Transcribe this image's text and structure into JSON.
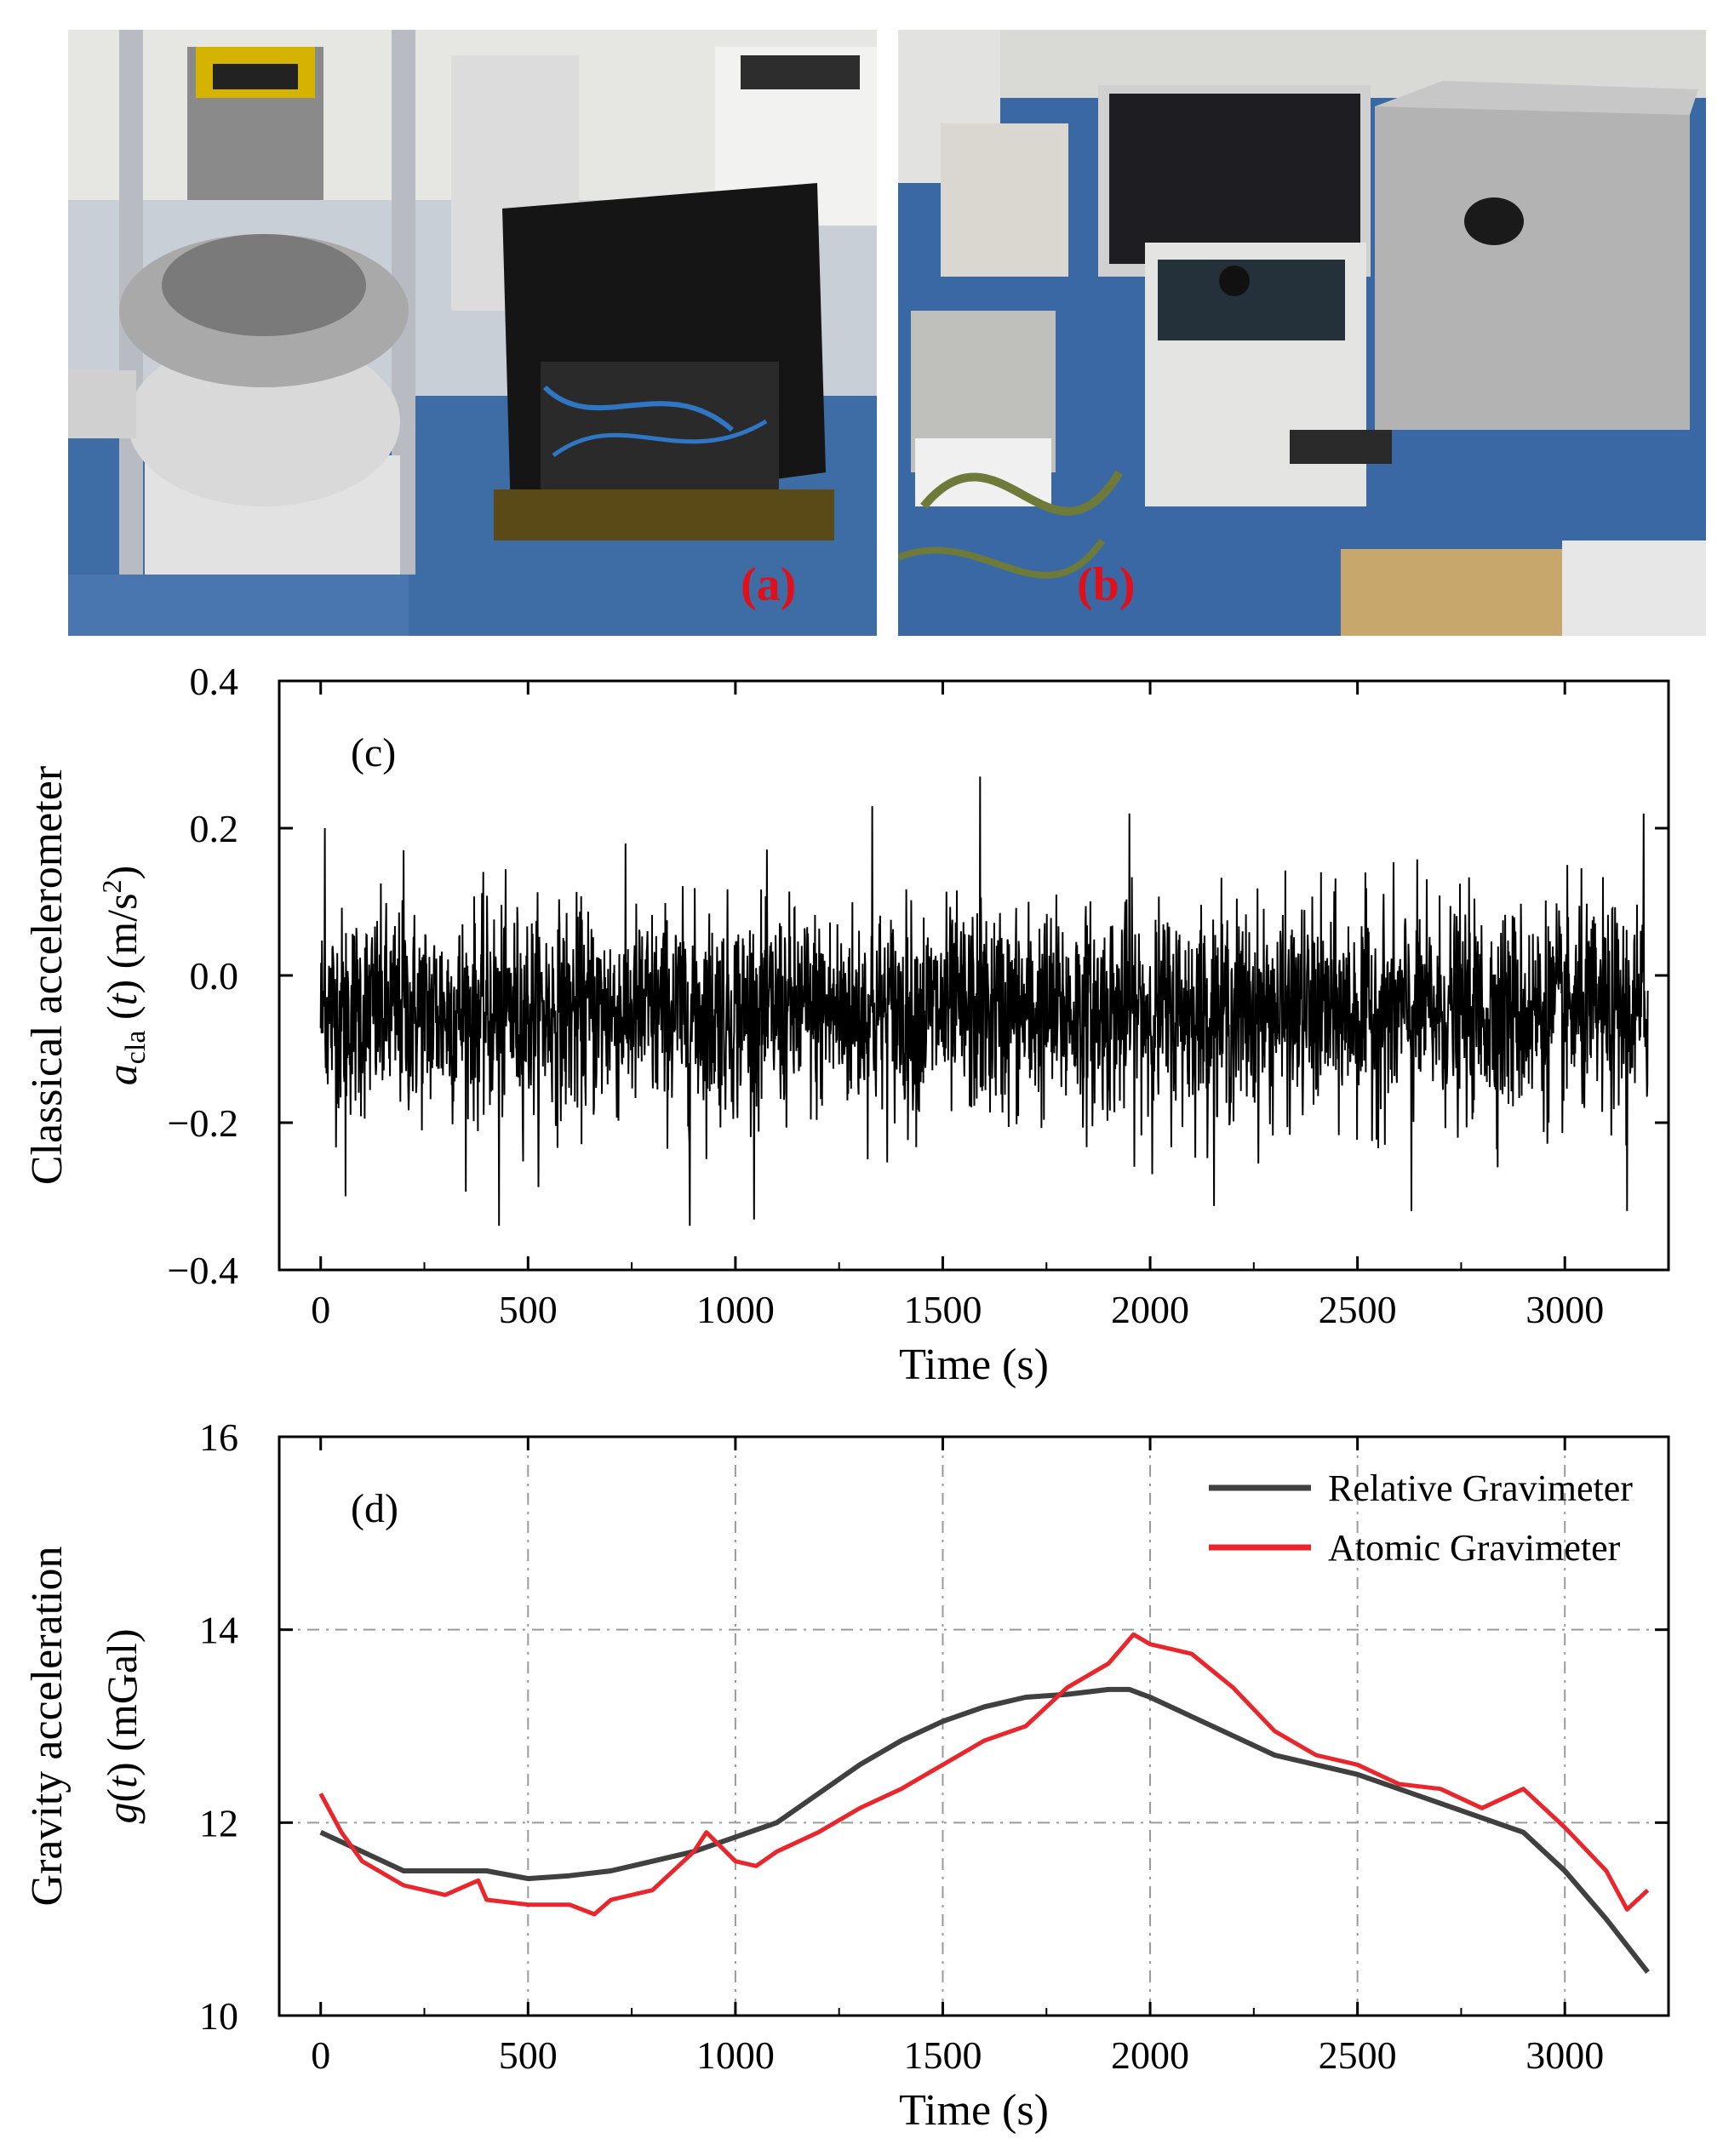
{
  "panels": {
    "a": {
      "label": "(a)"
    },
    "b": {
      "label": "(b)"
    }
  },
  "colors": {
    "black_series": "#000000",
    "relative": "#404040",
    "atomic": "#e8262b",
    "grid": "#9a9a9a",
    "label_red": "#e0101a"
  },
  "chart_data": [
    {
      "type": "line",
      "panel_label": "(c)",
      "xlabel": "Time (s)",
      "ylabel_line1": "Classical accelerometer",
      "ylabel_line2": "acla (t) (m/s2)",
      "xlim": [
        -100,
        3250
      ],
      "ylim": [
        -0.4,
        0.4
      ],
      "xticks": [
        0,
        500,
        1000,
        1500,
        2000,
        2500,
        3000
      ],
      "yticks": [
        -0.4,
        -0.2,
        0.0,
        0.2,
        0.4
      ],
      "ytick_labels": [
        "−0.4",
        "−0.2",
        "0.0",
        "0.2",
        "0.4"
      ],
      "grid": false,
      "series": [
        {
          "x_range": [
            0,
            3200
          ],
          "noise_std": 0.07,
          "center": -0.05,
          "peaks": [
            {
              "x": 10,
              "y": 0.2
            },
            {
              "x": 60,
              "y": -0.3
            },
            {
              "x": 200,
              "y": 0.17
            },
            {
              "x": 430,
              "y": -0.34
            },
            {
              "x": 890,
              "y": -0.34
            },
            {
              "x": 1330,
              "y": 0.23
            },
            {
              "x": 1590,
              "y": 0.27
            },
            {
              "x": 1950,
              "y": 0.22
            },
            {
              "x": 2630,
              "y": -0.32
            },
            {
              "x": 3150,
              "y": -0.32
            },
            {
              "x": 3190,
              "y": 0.22
            }
          ]
        }
      ]
    },
    {
      "type": "line",
      "panel_label": "(d)",
      "xlabel": "Time (s)",
      "ylabel_line1": "Gravity acceleration",
      "ylabel_line2": "g(t) (mGal)",
      "xlim": [
        -100,
        3250
      ],
      "ylim": [
        10,
        16
      ],
      "xticks": [
        0,
        500,
        1000,
        1500,
        2000,
        2500,
        3000
      ],
      "yticks": [
        10,
        12,
        14,
        16
      ],
      "grid": true,
      "legend_position": "top-right",
      "series": [
        {
          "name": "Relative Gravimeter",
          "x": [
            0,
            100,
            200,
            300,
            400,
            500,
            600,
            700,
            800,
            900,
            1000,
            1100,
            1200,
            1300,
            1400,
            1500,
            1600,
            1700,
            1800,
            1900,
            1950,
            2000,
            2100,
            2200,
            2300,
            2400,
            2500,
            2600,
            2700,
            2800,
            2900,
            3000,
            3100,
            3200
          ],
          "y": [
            11.9,
            11.7,
            11.5,
            11.5,
            11.5,
            11.42,
            11.45,
            11.5,
            11.6,
            11.7,
            11.85,
            12.0,
            12.3,
            12.6,
            12.85,
            13.05,
            13.2,
            13.3,
            13.33,
            13.38,
            13.38,
            13.3,
            13.1,
            12.9,
            12.7,
            12.6,
            12.5,
            12.35,
            12.2,
            12.05,
            11.9,
            11.5,
            11.0,
            10.45
          ]
        },
        {
          "name": "Atomic Gravimeter",
          "x": [
            0,
            50,
            100,
            200,
            300,
            380,
            400,
            500,
            600,
            660,
            700,
            800,
            900,
            930,
            1000,
            1050,
            1100,
            1200,
            1300,
            1400,
            1500,
            1600,
            1700,
            1800,
            1900,
            1960,
            2000,
            2100,
            2200,
            2300,
            2400,
            2500,
            2600,
            2700,
            2800,
            2900,
            3000,
            3100,
            3150,
            3200
          ],
          "y": [
            12.3,
            11.9,
            11.6,
            11.35,
            11.25,
            11.4,
            11.2,
            11.15,
            11.15,
            11.05,
            11.2,
            11.3,
            11.7,
            11.9,
            11.6,
            11.55,
            11.7,
            11.9,
            12.15,
            12.35,
            12.6,
            12.85,
            13.0,
            13.4,
            13.65,
            13.95,
            13.85,
            13.75,
            13.4,
            12.95,
            12.7,
            12.6,
            12.4,
            12.35,
            12.15,
            12.35,
            11.95,
            11.5,
            11.1,
            11.3
          ]
        }
      ]
    }
  ]
}
